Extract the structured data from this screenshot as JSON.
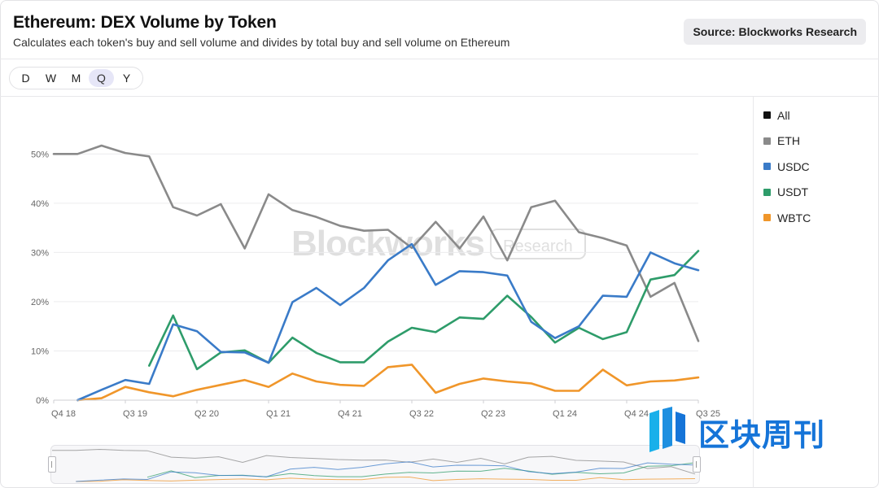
{
  "header": {
    "title": "Ethereum: DEX Volume by Token",
    "subtitle": "Calculates each token's buy and sell volume and divides by total buy and sell volume on Ethereum",
    "source": "Source: Blockworks Research"
  },
  "periods": {
    "items": [
      "D",
      "W",
      "M",
      "Q",
      "Y"
    ],
    "active": "Q"
  },
  "watermark": {
    "brand": "Blockworks",
    "sub": "Research"
  },
  "corner_logo": {
    "text": "区块周刊"
  },
  "colors": {
    "All": "#111111",
    "ETH": "#8a8a8a",
    "USDC": "#3a7bc8",
    "USDT": "#2e9c6a",
    "WBTC": "#f0962a",
    "grid": "#ececee",
    "axis_text": "#666666"
  },
  "chart_data": {
    "type": "line",
    "title": "Ethereum: DEX Volume by Token",
    "xlabel": "",
    "ylabel": "",
    "ylim": [
      0,
      55
    ],
    "yticks": [
      0,
      10,
      20,
      30,
      40,
      50
    ],
    "ytick_labels": [
      "0%",
      "10%",
      "20%",
      "30%",
      "40%",
      "50%"
    ],
    "x_ticks": [
      {
        "index": 0,
        "label": "Q4 18"
      },
      {
        "index": 3,
        "label": "Q3 19"
      },
      {
        "index": 6,
        "label": "Q2 20"
      },
      {
        "index": 9,
        "label": "Q1 21"
      },
      {
        "index": 12,
        "label": "Q4 21"
      },
      {
        "index": 15,
        "label": "Q3 22"
      },
      {
        "index": 18,
        "label": "Q2 23"
      },
      {
        "index": 21,
        "label": "Q1 24"
      },
      {
        "index": 24,
        "label": "Q4 24"
      },
      {
        "index": 27,
        "label": "Q3 25"
      }
    ],
    "n_points": 28,
    "legend": [
      "All",
      "ETH",
      "USDC",
      "USDT",
      "WBTC"
    ],
    "series": [
      {
        "name": "ETH",
        "start": 0,
        "values": [
          50.0,
          50.0,
          51.7,
          50.2,
          49.5,
          39.2,
          37.5,
          39.8,
          30.8,
          41.8,
          38.6,
          37.2,
          35.4,
          34.4,
          34.6,
          30.9,
          36.2,
          30.8,
          37.3,
          28.4,
          39.2,
          40.5,
          34.1,
          32.9,
          31.4,
          21.0,
          23.8,
          12.0
        ]
      },
      {
        "name": "USDC",
        "start": 1,
        "values": [
          0.0,
          2.1,
          4.1,
          3.3,
          15.4,
          14.0,
          9.8,
          9.7,
          7.6,
          19.9,
          22.8,
          19.3,
          22.8,
          28.4,
          31.7,
          23.4,
          26.2,
          26.0,
          25.3,
          15.9,
          12.6,
          15.0,
          21.2,
          21.0,
          30.0,
          27.8,
          26.4
        ]
      },
      {
        "name": "USDT",
        "start": 4,
        "values": [
          7.0,
          17.2,
          6.3,
          9.7,
          10.1,
          7.6,
          12.7,
          9.6,
          7.7,
          7.7,
          11.9,
          14.7,
          13.8,
          16.8,
          16.5,
          21.2,
          16.9,
          11.7,
          14.7,
          12.4,
          13.8,
          24.5,
          25.4,
          30.3
        ]
      },
      {
        "name": "WBTC",
        "start": 1,
        "values": [
          0.0,
          0.4,
          2.7,
          1.6,
          0.8,
          2.1,
          3.1,
          4.1,
          2.7,
          5.4,
          3.8,
          3.1,
          2.9,
          6.7,
          7.2,
          1.5,
          3.3,
          4.4,
          3.8,
          3.4,
          1.9,
          1.9,
          6.2,
          3.0,
          3.8,
          4.0,
          4.6
        ]
      }
    ]
  }
}
